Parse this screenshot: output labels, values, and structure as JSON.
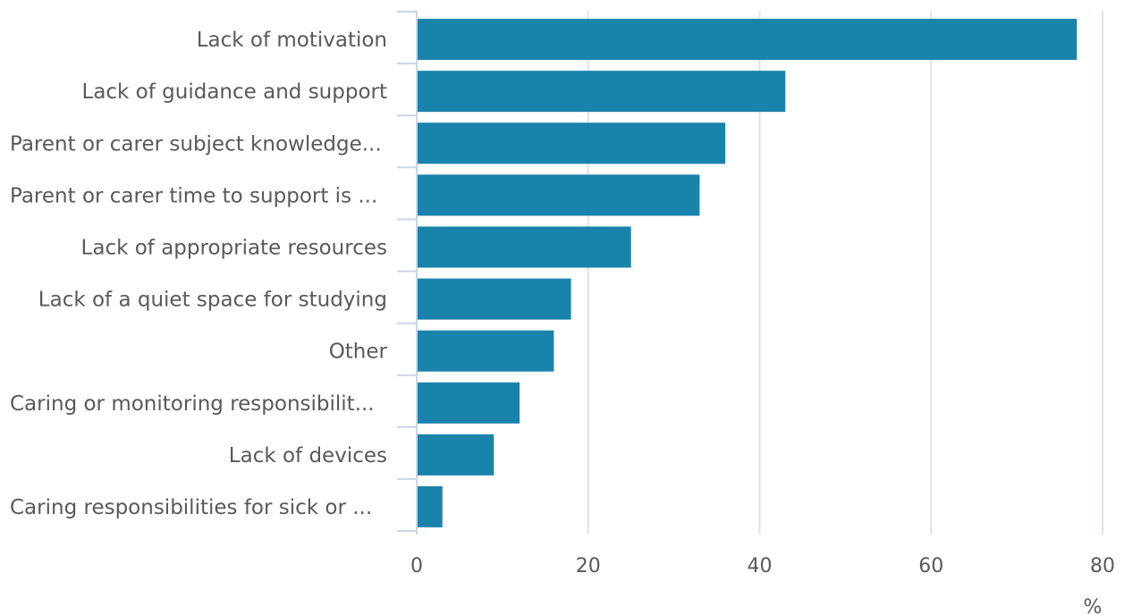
{
  "chart_data": {
    "type": "bar",
    "orientation": "horizontal",
    "categories": [
      "Lack of motivation",
      "Lack of guidance and support",
      "Parent or carer subject knowledge...",
      "Parent or carer time to support is ...",
      "Lack of appropriate resources",
      "Lack of a quiet space for studying",
      "Other",
      "Caring or monitoring responsibilit...",
      "Lack of devices",
      "Caring responsibilities for sick or ..."
    ],
    "values": [
      77,
      43,
      36,
      33,
      25,
      18,
      16,
      12,
      9,
      3
    ],
    "xlabel": "%",
    "ylabel": "",
    "xlim": [
      0,
      80
    ],
    "x_ticks": [
      0,
      20,
      40,
      60,
      80
    ],
    "grid": true,
    "colors": {
      "bar": "#1a83ab",
      "grid": "#dde3ea",
      "axis": "#c9d5e6",
      "text": "#595959"
    }
  }
}
